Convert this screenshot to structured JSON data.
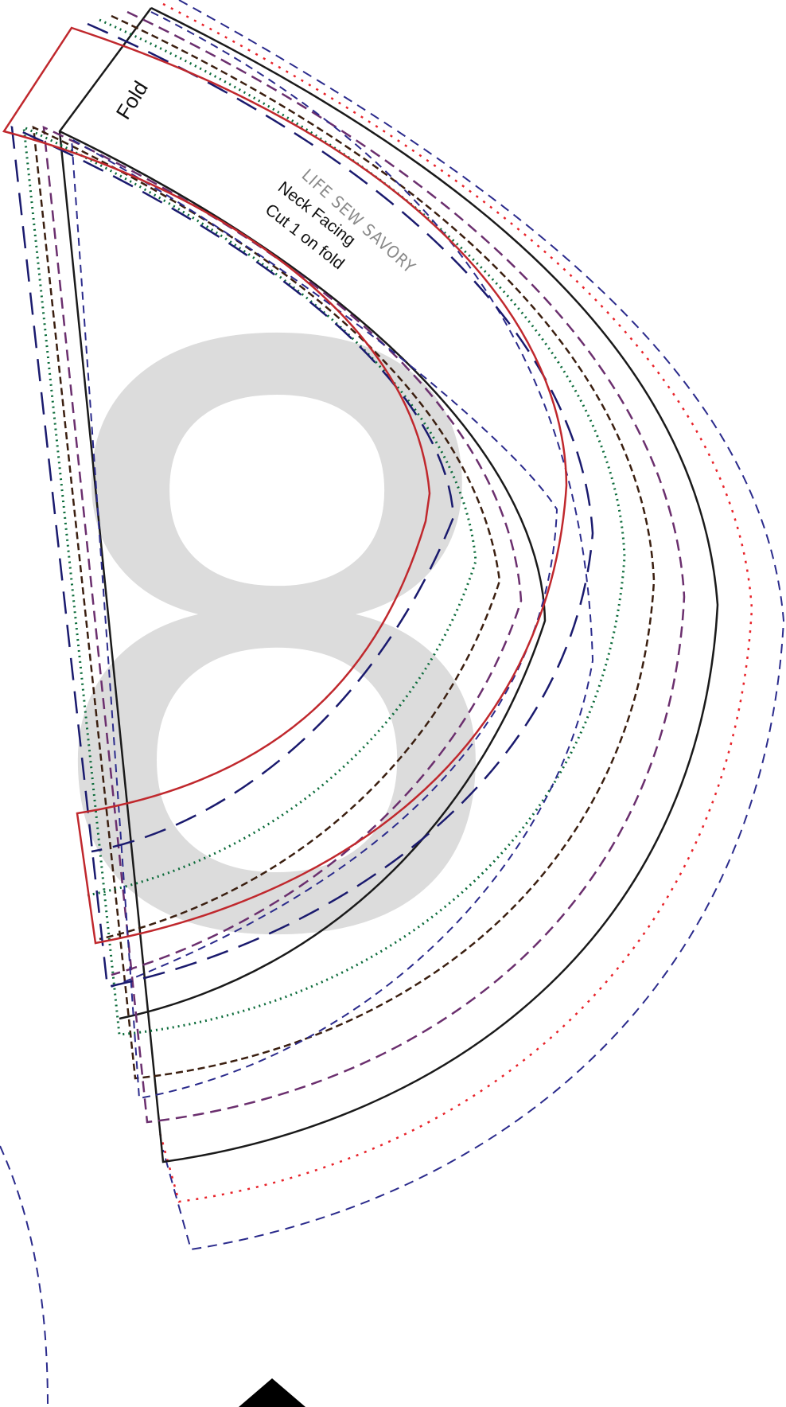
{
  "page_number": "8",
  "fold_label": "Fold",
  "brand": "LIFE SEW SAVORY",
  "piece_name": "Neck Facing",
  "cut_instruction": "Cut 1 on fold",
  "colors": {
    "page_number": "#dcdcdc",
    "red_solid": "#c0282d",
    "black_solid": "#1a1a1a",
    "navy_long_dash": "#1a1a6e",
    "blue_dash": "#2b2b8c",
    "red_dotted": "#e8232a",
    "green_dotted": "#0b6b3a",
    "brown_dash": "#3b1f10",
    "purple_dash": "#6b2f6e"
  }
}
